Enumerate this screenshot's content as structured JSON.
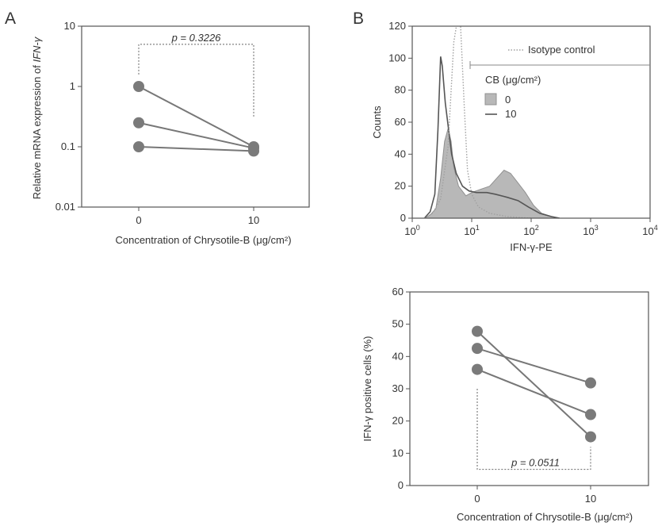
{
  "panels": {
    "a_letter": "A",
    "b_letter": "B"
  },
  "chart_data": [
    {
      "id": "A",
      "type": "line",
      "ylabel_plain": "Relative mRNA expression of ",
      "ylabel_italic": "IFN-γ",
      "xlabel": "Concentration of Chrysotile-B (μg/cm²)",
      "y_scale": "log",
      "ylim": [
        0.01,
        10
      ],
      "y_ticks": [
        {
          "value": 0.01,
          "label": "0.01"
        },
        {
          "value": 0.1,
          "label": "0.1"
        },
        {
          "value": 1,
          "label": "1"
        },
        {
          "value": 10,
          "label": "10"
        }
      ],
      "categories": [
        "0",
        "10"
      ],
      "series": [
        {
          "values": [
            1.0,
            0.1
          ]
        },
        {
          "values": [
            0.25,
            0.095
          ]
        },
        {
          "values": [
            0.1,
            0.085
          ]
        }
      ],
      "annotation": {
        "label": "p = 0.3226",
        "y_value": 5.0
      },
      "grid": false,
      "marker_color": "#7a7a7a"
    },
    {
      "id": "B-histogram",
      "type": "area",
      "ylabel": "Counts",
      "xlabel": "IFN-γ-PE",
      "x_scale": "log",
      "xlim": [
        1,
        10000
      ],
      "ylim": [
        0,
        120
      ],
      "y_ticks": [
        0,
        20,
        40,
        60,
        80,
        100,
        120
      ],
      "x_ticks": [
        {
          "value": 1,
          "base": "10",
          "exp": "0"
        },
        {
          "value": 10,
          "base": "10",
          "exp": "1"
        },
        {
          "value": 100,
          "base": "10",
          "exp": "2"
        },
        {
          "value": 1000,
          "base": "10",
          "exp": "3"
        },
        {
          "value": 10000,
          "base": "10",
          "exp": "4"
        }
      ],
      "legend": {
        "isotype": "Isotype control",
        "title": "CB (μg/cm²)",
        "items": [
          "0",
          "10"
        ],
        "placement": "top-right"
      },
      "series": [
        {
          "name": "Isotype control",
          "style": "dotted",
          "points": [
            [
              1.6,
              0
            ],
            [
              2.2,
              3
            ],
            [
              3,
              12
            ],
            [
              4,
              45
            ],
            [
              5,
              110
            ],
            [
              5.8,
              125
            ],
            [
              6.5,
              120
            ],
            [
              7.5,
              70
            ],
            [
              8.5,
              30
            ],
            [
              10,
              15
            ],
            [
              13,
              7
            ],
            [
              20,
              3
            ],
            [
              40,
              1
            ],
            [
              100,
              0
            ]
          ]
        },
        {
          "name": "0",
          "style": "filled",
          "points": [
            [
              1.6,
              0
            ],
            [
              2,
              2
            ],
            [
              2.5,
              6
            ],
            [
              3,
              25
            ],
            [
              3.5,
              48
            ],
            [
              4,
              56
            ],
            [
              4.5,
              48
            ],
            [
              5,
              32
            ],
            [
              6,
              20
            ],
            [
              8,
              14
            ],
            [
              10,
              16
            ],
            [
              14,
              18
            ],
            [
              20,
              20
            ],
            [
              28,
              26
            ],
            [
              35,
              30
            ],
            [
              45,
              28
            ],
            [
              60,
              22
            ],
            [
              80,
              16
            ],
            [
              110,
              8
            ],
            [
              150,
              3
            ],
            [
              220,
              1
            ],
            [
              300,
              0
            ]
          ]
        },
        {
          "name": "10",
          "style": "solid",
          "points": [
            [
              1.6,
              0
            ],
            [
              2,
              4
            ],
            [
              2.4,
              15
            ],
            [
              2.7,
              55
            ],
            [
              3,
              101
            ],
            [
              3.2,
              95
            ],
            [
              3.6,
              72
            ],
            [
              4,
              58
            ],
            [
              4.6,
              40
            ],
            [
              5.5,
              28
            ],
            [
              7,
              20
            ],
            [
              9,
              17
            ],
            [
              12,
              16
            ],
            [
              18,
              16
            ],
            [
              25,
              15
            ],
            [
              40,
              13
            ],
            [
              60,
              11
            ],
            [
              90,
              7
            ],
            [
              140,
              3
            ],
            [
              220,
              1
            ],
            [
              300,
              0
            ]
          ]
        }
      ],
      "series_colors": {
        "filled_fill": "#b8b8b8",
        "filled_edge": "#909090",
        "line": "#555555",
        "isotype": "#a0a0a0"
      }
    },
    {
      "id": "B-scatter",
      "type": "line",
      "ylabel": "IFN-γ positive cells (%)",
      "xlabel": "Concentration of Chrysotile-B (μg/cm²)",
      "ylim": [
        0,
        60
      ],
      "y_ticks": [
        0,
        10,
        20,
        30,
        40,
        50,
        60
      ],
      "categories": [
        "0",
        "10"
      ],
      "series": [
        {
          "values": [
            47.8,
            15.1
          ]
        },
        {
          "values": [
            42.5,
            31.8
          ]
        },
        {
          "values": [
            36.0,
            22.0
          ]
        }
      ],
      "annotation": {
        "label": "p = 0.0511",
        "y_value": 5.0
      },
      "grid": false,
      "marker_color": "#7a7a7a"
    }
  ]
}
